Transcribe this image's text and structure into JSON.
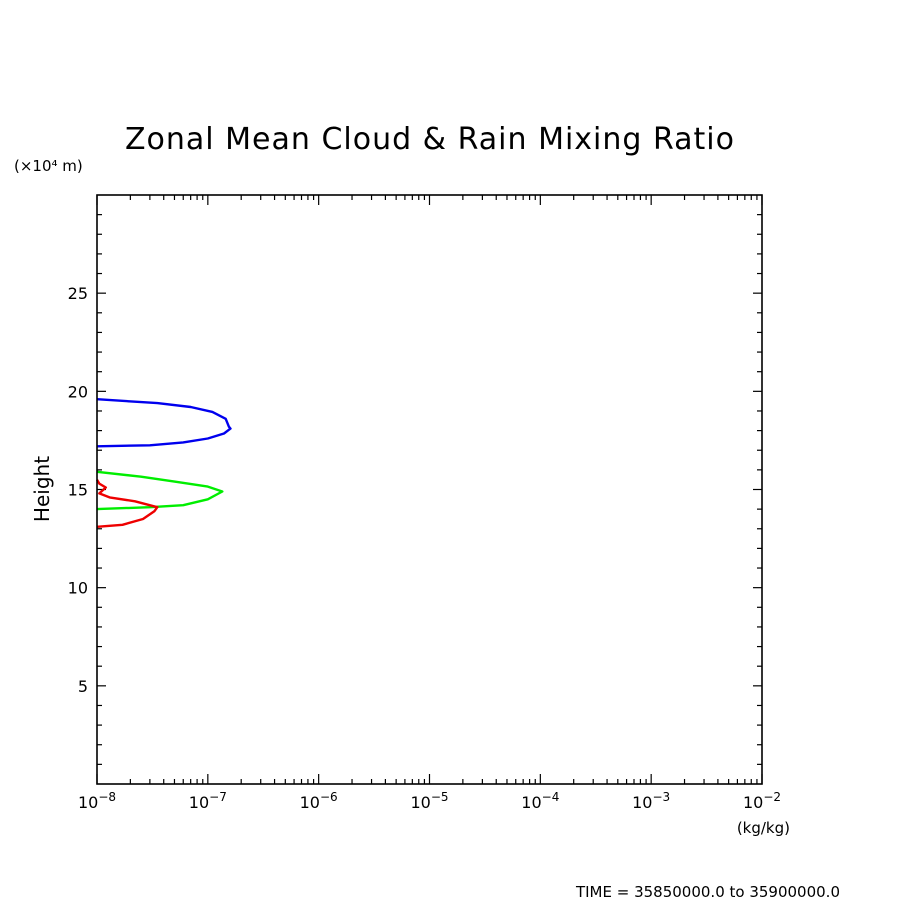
{
  "chart_data": {
    "type": "line",
    "title": "Zonal Mean Cloud & Rain Mixing Ratio",
    "xlabel": "(kg/kg)",
    "ylabel": "Height",
    "y_unit": "(×10⁴ m)",
    "x_scale": "log",
    "xlim": [
      1e-08,
      0.01
    ],
    "ylim": [
      0,
      30
    ],
    "x_ticks": [
      {
        "value": 1e-08,
        "base": "10",
        "exp": "−8"
      },
      {
        "value": 1e-07,
        "base": "10",
        "exp": "−7"
      },
      {
        "value": 1e-06,
        "base": "10",
        "exp": "−6"
      },
      {
        "value": 1e-05,
        "base": "10",
        "exp": "−5"
      },
      {
        "value": 0.0001,
        "base": "10",
        "exp": "−4"
      },
      {
        "value": 0.001,
        "base": "10",
        "exp": "−3"
      },
      {
        "value": 0.01,
        "base": "10",
        "exp": "−2"
      }
    ],
    "y_ticks": [
      {
        "value": 5,
        "label": "5"
      },
      {
        "value": 10,
        "label": "10"
      },
      {
        "value": 15,
        "label": "15"
      },
      {
        "value": 20,
        "label": "20"
      },
      {
        "value": 25,
        "label": "25"
      }
    ],
    "grid": false,
    "series": [
      {
        "color": "#0000ee",
        "points": [
          [
            1e-08,
            17.2
          ],
          [
            3e-08,
            17.25
          ],
          [
            6e-08,
            17.4
          ],
          [
            1e-07,
            17.6
          ],
          [
            1.4e-07,
            17.85
          ],
          [
            1.6e-07,
            18.1
          ],
          [
            1.55e-07,
            18.2
          ],
          [
            1.45e-07,
            18.6
          ],
          [
            1.1e-07,
            18.95
          ],
          [
            7e-08,
            19.2
          ],
          [
            3.5e-08,
            19.4
          ],
          [
            1e-08,
            19.6
          ]
        ]
      },
      {
        "color": "#00ee00",
        "points": [
          [
            1e-08,
            14.0
          ],
          [
            3e-08,
            14.1
          ],
          [
            6e-08,
            14.2
          ],
          [
            1e-07,
            14.5
          ],
          [
            1.35e-07,
            14.9
          ],
          [
            1e-07,
            15.15
          ],
          [
            5e-08,
            15.4
          ],
          [
            2.5e-08,
            15.65
          ],
          [
            1e-08,
            15.9
          ]
        ]
      },
      {
        "color": "#ee0000",
        "points": [
          [
            1e-08,
            13.1
          ],
          [
            1.7e-08,
            13.2
          ],
          [
            2.6e-08,
            13.5
          ],
          [
            3.3e-08,
            13.9
          ],
          [
            3.5e-08,
            14.1
          ],
          [
            2.2e-08,
            14.4
          ],
          [
            1.3e-08,
            14.6
          ],
          [
            1.05e-08,
            14.8
          ],
          [
            1.2e-08,
            15.1
          ],
          [
            1.05e-08,
            15.3
          ],
          [
            1e-08,
            15.5
          ]
        ]
      }
    ]
  },
  "footer": {
    "time_range": "TIME = 35850000.0 to 35900000.0"
  }
}
